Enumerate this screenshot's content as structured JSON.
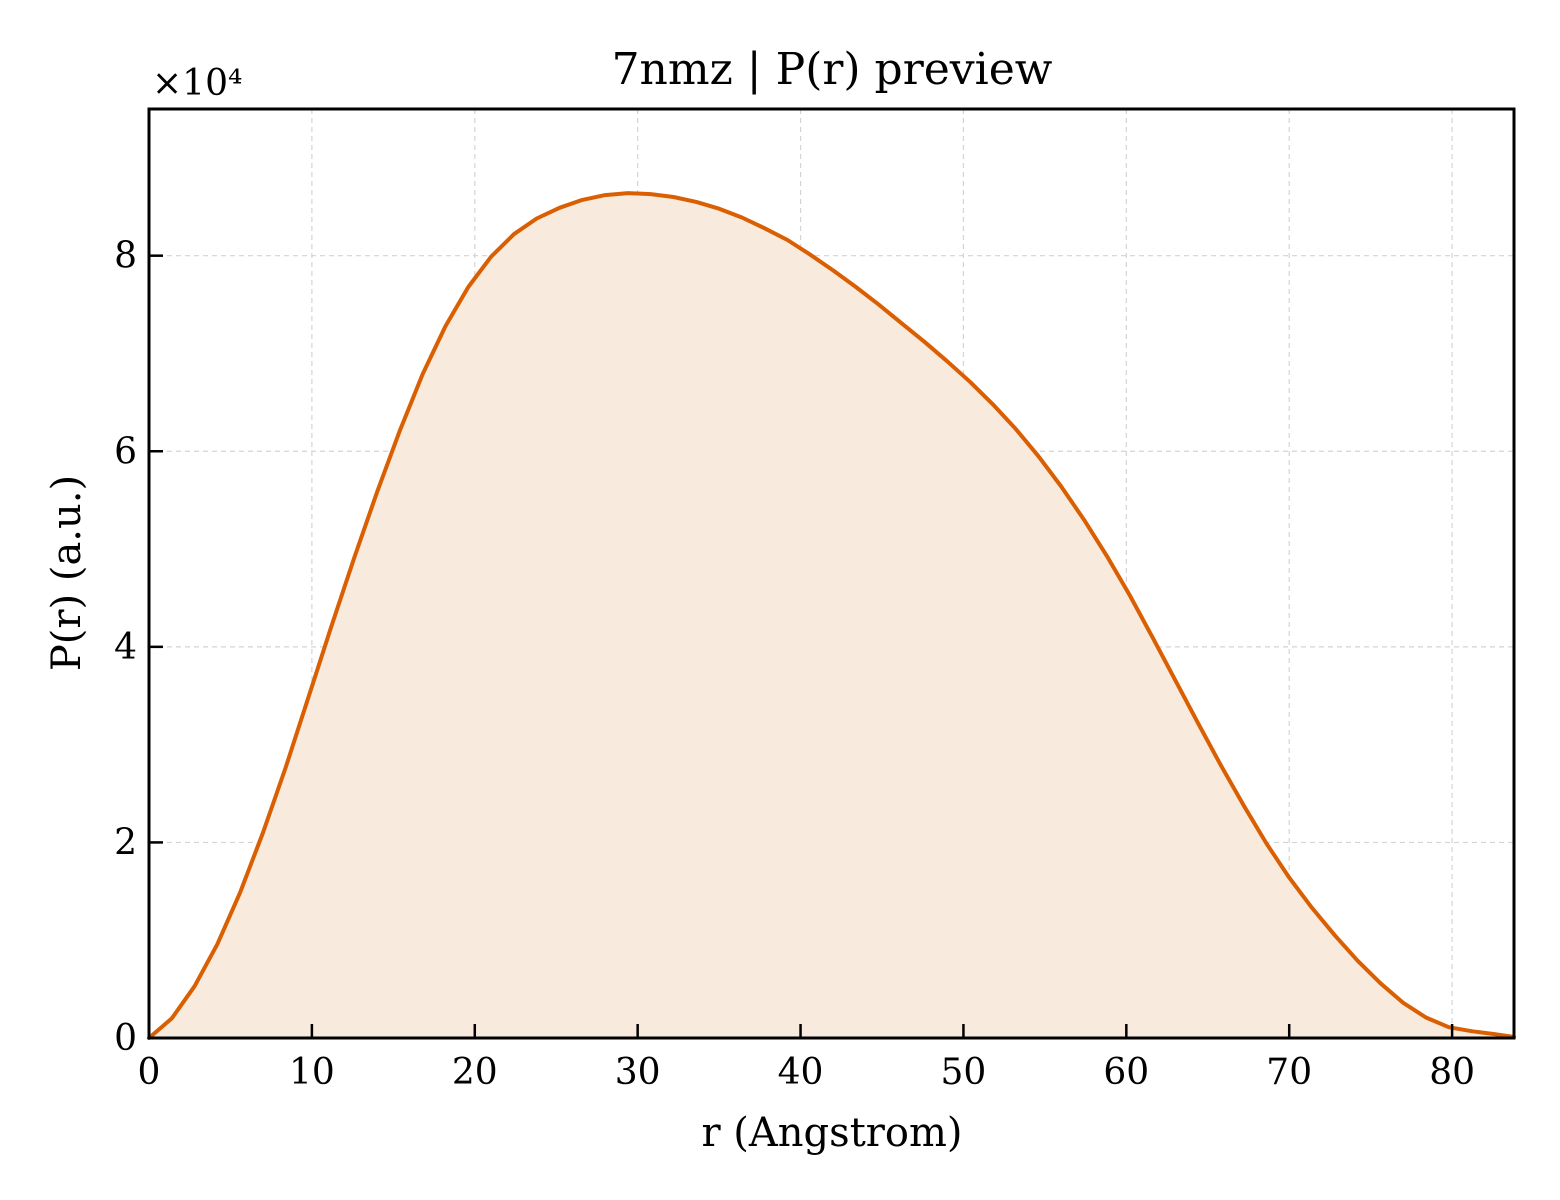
{
  "chart_data": {
    "type": "area",
    "title": "7nmz | P(r) preview",
    "xlabel": "r (Angstrom)",
    "ylabel": "P(r) (a.u.)",
    "y_multiplier_label": "×10⁴",
    "y_multiplier": 10000,
    "xlim": [
      0,
      83.8
    ],
    "ylim": [
      0,
      95000
    ],
    "xticks": [
      0,
      10,
      20,
      30,
      40,
      50,
      60,
      70,
      80
    ],
    "yticks": [
      0,
      20000,
      40000,
      60000,
      80000
    ],
    "ytick_labels": [
      "0",
      "2",
      "4",
      "6",
      "8"
    ],
    "grid": true,
    "line_color": "#d95f02",
    "fill_color": "#f9eade",
    "series": [
      {
        "x": [
          0,
          1.4,
          2.8,
          4.2,
          5.6,
          7.0,
          8.4,
          9.8,
          11.2,
          12.6,
          14.0,
          15.4,
          16.8,
          18.2,
          19.6,
          21.0,
          22.4,
          23.8,
          25.2,
          26.6,
          28.0,
          29.4,
          30.8,
          32.2,
          33.6,
          35.0,
          36.4,
          37.8,
          39.2,
          40.6,
          42.0,
          43.4,
          44.8,
          46.2,
          47.6,
          49.0,
          50.4,
          51.8,
          53.2,
          54.6,
          56.0,
          57.4,
          58.8,
          60.2,
          61.6,
          63.0,
          64.4,
          65.8,
          67.2,
          68.6,
          70.0,
          71.4,
          72.8,
          74.2,
          75.6,
          77.0,
          78.4,
          79.8,
          81.2,
          82.6,
          83.8
        ],
        "y": [
          0,
          2000,
          5300,
          9600,
          14900,
          21000,
          27700,
          34900,
          42100,
          49100,
          55800,
          62100,
          67900,
          72800,
          76800,
          79900,
          82200,
          83800,
          84900,
          85700,
          86200,
          86400,
          86300,
          86000,
          85500,
          84800,
          83900,
          82800,
          81600,
          80100,
          78500,
          76800,
          75000,
          73100,
          71200,
          69200,
          67100,
          64800,
          62300,
          59500,
          56400,
          53000,
          49300,
          45300,
          41000,
          36600,
          32200,
          27900,
          23800,
          19900,
          16400,
          13300,
          10500,
          7900,
          5600,
          3600,
          2100,
          1100,
          700,
          400,
          100
        ]
      }
    ]
  }
}
